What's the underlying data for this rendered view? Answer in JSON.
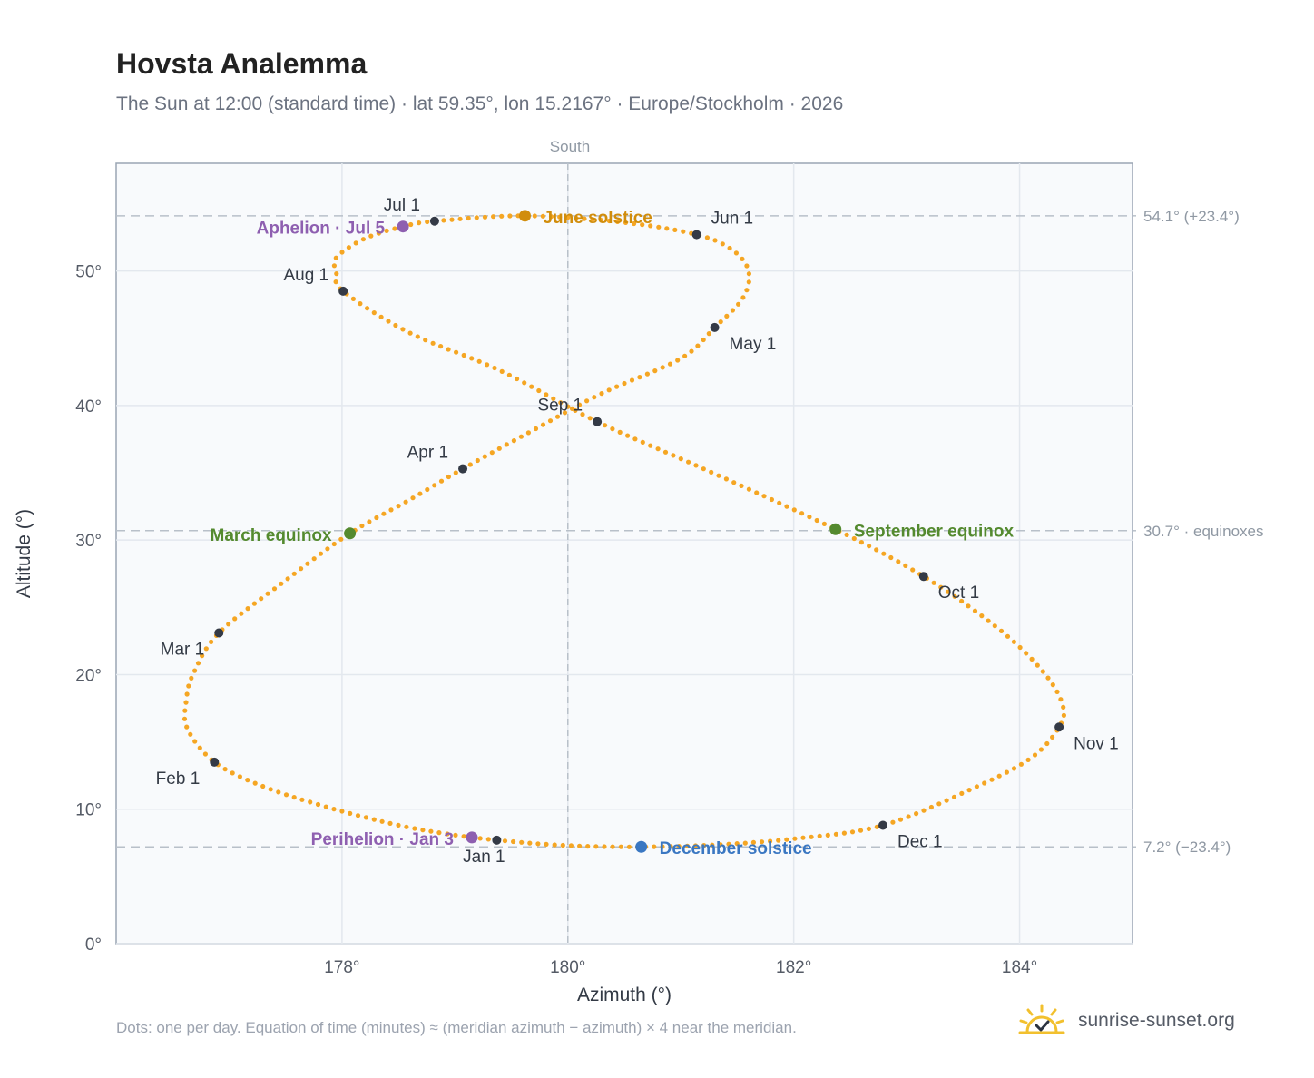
{
  "title": "Hovsta Analemma",
  "subtitle": "The Sun at 12:00 (standard time) · lat 59.35°, lon 15.2167° · Europe/Stockholm · 2026",
  "footnote": "Dots: one per day. Equation of time (minutes) ≈ (meridian azimuth − azimuth) × 4 near the meridian.",
  "brand": {
    "text": "sunrise-sunset.org",
    "icon": "sun-check-icon"
  },
  "colors": {
    "path": "#f5a623",
    "month_dot": "#343a46",
    "solstice_june": "#d18d0c",
    "solstice_december": "#3a77c2",
    "equinox": "#548a2f",
    "apsis": "#8e5fb0",
    "plot_bg": "#f8fafc",
    "grid": "#e3e8ee",
    "ref_line": "#b8c0c9"
  },
  "chart_data": {
    "type": "scatter",
    "xlabel": "Azimuth (°)",
    "ylabel": "Altitude (°)",
    "xlim": [
      176.0,
      185.0
    ],
    "ylim": [
      0,
      58
    ],
    "xticks": [
      178,
      180,
      182,
      184
    ],
    "xtick_labels": [
      "178°",
      "180°",
      "182°",
      "184°"
    ],
    "yticks": [
      0,
      10,
      20,
      30,
      40,
      50
    ],
    "ytick_labels": [
      "0°",
      "10°",
      "20°",
      "30°",
      "40°",
      "50°"
    ],
    "grid": true,
    "meridian": {
      "azimuth": 180,
      "label": "South"
    },
    "reference_lines": [
      {
        "altitude": 54.1,
        "label": "54.1° (+23.4°)"
      },
      {
        "altitude": 30.7,
        "label": "30.7° · equinoxes"
      },
      {
        "altitude": 7.2,
        "label": "7.2° (−23.4°)"
      }
    ],
    "month_points": [
      {
        "label": "Jan 1",
        "azimuth": 179.37,
        "altitude": 7.7,
        "pos": "below"
      },
      {
        "label": "Feb 1",
        "azimuth": 176.87,
        "altitude": 13.5,
        "pos": "below-left"
      },
      {
        "label": "Mar 1",
        "azimuth": 176.91,
        "altitude": 23.1,
        "pos": "below-left"
      },
      {
        "label": "Apr 1",
        "azimuth": 179.07,
        "altitude": 35.3,
        "pos": "above-left"
      },
      {
        "label": "May 1",
        "azimuth": 181.3,
        "altitude": 45.8,
        "pos": "below-right"
      },
      {
        "label": "Jun 1",
        "azimuth": 181.14,
        "altitude": 52.7,
        "pos": "above-right"
      },
      {
        "label": "Jul 1",
        "azimuth": 178.82,
        "altitude": 53.7,
        "pos": "above-left"
      },
      {
        "label": "Aug 1",
        "azimuth": 178.01,
        "altitude": 48.5,
        "pos": "above-left"
      },
      {
        "label": "Sep 1",
        "azimuth": 180.26,
        "altitude": 38.8,
        "pos": "above-left"
      },
      {
        "label": "Oct 1",
        "azimuth": 183.15,
        "altitude": 27.3,
        "pos": "below-right"
      },
      {
        "label": "Nov 1",
        "azimuth": 184.35,
        "altitude": 16.1,
        "pos": "below-right"
      },
      {
        "label": "Dec 1",
        "azimuth": 182.79,
        "altitude": 8.8,
        "pos": "below-right"
      }
    ],
    "events": [
      {
        "label": "June solstice",
        "azimuth": 179.62,
        "altitude": 54.1,
        "kind": "solstice_june",
        "pos": "right"
      },
      {
        "label": "December solstice",
        "azimuth": 180.65,
        "altitude": 7.2,
        "kind": "solstice_december",
        "pos": "right"
      },
      {
        "label": "March equinox",
        "azimuth": 178.07,
        "altitude": 30.5,
        "kind": "equinox",
        "pos": "left"
      },
      {
        "label": "September equinox",
        "azimuth": 182.37,
        "altitude": 30.8,
        "kind": "equinox",
        "pos": "right"
      },
      {
        "label": "Aphelion · Jul 5",
        "azimuth": 178.54,
        "altitude": 53.3,
        "kind": "apsis",
        "pos": "left"
      },
      {
        "label": "Perihelion · Jan 3",
        "azimuth": 179.15,
        "altitude": 7.9,
        "kind": "apsis",
        "pos": "left"
      }
    ],
    "path_keypoints": [
      [
        179.37,
        7.7
      ],
      [
        178.9,
        8.2
      ],
      [
        178.45,
        8.9
      ],
      [
        177.85,
        10.2
      ],
      [
        177.3,
        11.7
      ],
      [
        176.87,
        13.5
      ],
      [
        176.63,
        16.0
      ],
      [
        176.62,
        18.0
      ],
      [
        176.68,
        20.0
      ],
      [
        176.91,
        23.1
      ],
      [
        177.5,
        27.0
      ],
      [
        178.07,
        30.5
      ],
      [
        178.6,
        33.0
      ],
      [
        179.07,
        35.3
      ],
      [
        179.7,
        38.2
      ],
      [
        180.3,
        40.9
      ],
      [
        181.0,
        43.5
      ],
      [
        181.3,
        45.8
      ],
      [
        181.55,
        48.0
      ],
      [
        181.6,
        50.0
      ],
      [
        181.45,
        51.6
      ],
      [
        181.14,
        52.7
      ],
      [
        180.5,
        53.6
      ],
      [
        179.62,
        54.1
      ],
      [
        178.82,
        53.7
      ],
      [
        178.54,
        53.3
      ],
      [
        178.2,
        52.4
      ],
      [
        177.95,
        51.0
      ],
      [
        177.95,
        49.9
      ],
      [
        178.01,
        48.5
      ],
      [
        178.6,
        45.4
      ],
      [
        179.4,
        42.6
      ],
      [
        180.26,
        38.8
      ],
      [
        181.2,
        35.3
      ],
      [
        182.37,
        30.8
      ],
      [
        183.15,
        27.3
      ],
      [
        183.8,
        23.5
      ],
      [
        184.2,
        20.3
      ],
      [
        184.38,
        17.8
      ],
      [
        184.35,
        16.1
      ],
      [
        184.1,
        13.8
      ],
      [
        183.6,
        11.6
      ],
      [
        182.79,
        8.8
      ],
      [
        182.0,
        7.8
      ],
      [
        181.3,
        7.35
      ],
      [
        180.65,
        7.2
      ],
      [
        180.0,
        7.3
      ],
      [
        179.37,
        7.7
      ]
    ]
  }
}
